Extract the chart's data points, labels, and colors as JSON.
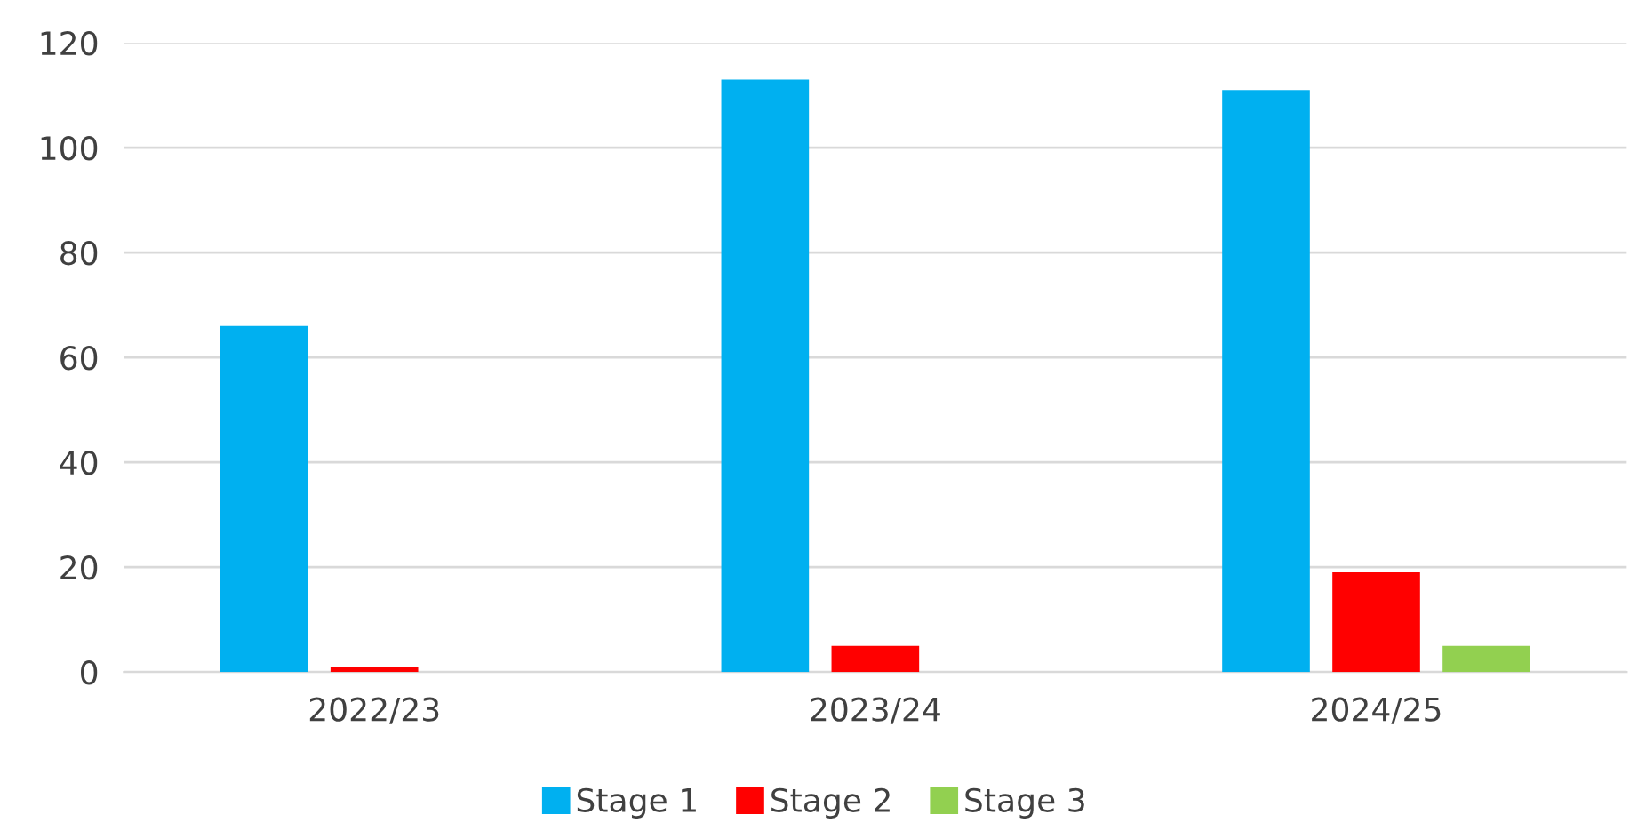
{
  "chart_data": {
    "type": "bar",
    "categories": [
      "2022/23",
      "2023/24",
      "2024/25"
    ],
    "series": [
      {
        "name": "Stage 1",
        "color": "#00b0f0",
        "values": [
          66,
          113,
          111
        ]
      },
      {
        "name": "Stage 2",
        "color": "#ff0000",
        "values": [
          1,
          5,
          19
        ]
      },
      {
        "name": "Stage 3",
        "color": "#92d050",
        "values": [
          0,
          0,
          5
        ]
      }
    ],
    "ylim": [
      0,
      120
    ],
    "yticks": [
      0,
      20,
      40,
      60,
      80,
      100,
      120
    ],
    "grid": "y",
    "legend": "bottom"
  }
}
